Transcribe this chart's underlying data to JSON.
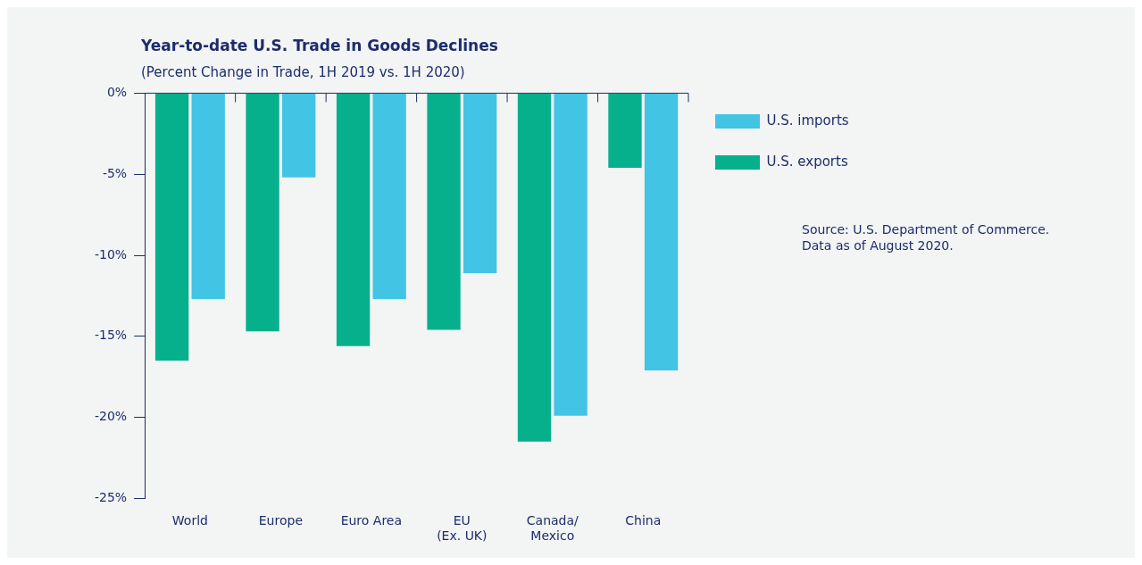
{
  "chart_data": {
    "type": "bar",
    "title": "Year-to-date U.S. Trade in Goods Declines",
    "subtitle": "(Percent Change in Trade, 1H 2019 vs. 1H 2020)",
    "categories": [
      "World",
      "Europe",
      "Euro Area",
      "EU\n(Ex. UK)",
      "Canada/\nMexico",
      "China"
    ],
    "series": [
      {
        "name": "U.S. exports",
        "color": "#07b08c",
        "values": [
          -16.5,
          -14.7,
          -15.6,
          -14.6,
          -21.5,
          -4.6
        ]
      },
      {
        "name": "U.S. imports",
        "color": "#42c4e4",
        "values": [
          -12.7,
          -5.2,
          -12.7,
          -11.1,
          -19.9,
          -17.1
        ]
      }
    ],
    "ylim": [
      -25,
      0
    ],
    "yticks": [
      {
        "value": 0,
        "label": "0%"
      },
      {
        "value": -5,
        "label": "-5%"
      },
      {
        "value": -10,
        "label": "-10%"
      },
      {
        "value": -15,
        "label": "-15%"
      },
      {
        "value": -20,
        "label": "-20%"
      },
      {
        "value": -25,
        "label": "-25%"
      }
    ],
    "grid": false,
    "legend": "right",
    "annotations": [
      "Source: U.S. Department of Commerce. Data as of August 2020."
    ]
  }
}
